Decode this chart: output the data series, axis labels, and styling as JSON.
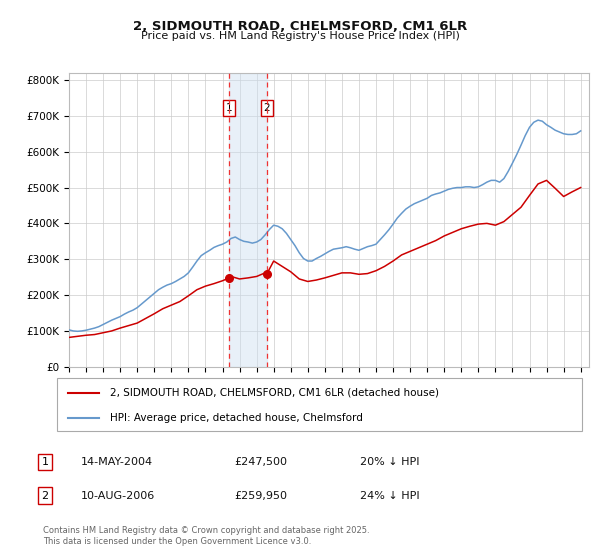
{
  "title": "2, SIDMOUTH ROAD, CHELMSFORD, CM1 6LR",
  "subtitle": "Price paid vs. HM Land Registry's House Price Index (HPI)",
  "legend_label_red": "2, SIDMOUTH ROAD, CHELMSFORD, CM1 6LR (detached house)",
  "legend_label_blue": "HPI: Average price, detached house, Chelmsford",
  "footnote": "Contains HM Land Registry data © Crown copyright and database right 2025.\nThis data is licensed under the Open Government Licence v3.0.",
  "transaction1_date": "14-MAY-2004",
  "transaction1_price": "£247,500",
  "transaction1_hpi": "20% ↓ HPI",
  "transaction1_year": 2004.37,
  "transaction1_value": 247500,
  "transaction2_date": "10-AUG-2006",
  "transaction2_price": "£259,950",
  "transaction2_hpi": "24% ↓ HPI",
  "transaction2_year": 2006.61,
  "transaction2_value": 259950,
  "xlim": [
    1995,
    2025.5
  ],
  "ylim": [
    0,
    820000
  ],
  "yticks": [
    0,
    100000,
    200000,
    300000,
    400000,
    500000,
    600000,
    700000,
    800000
  ],
  "ytick_labels": [
    "£0",
    "£100K",
    "£200K",
    "£300K",
    "£400K",
    "£500K",
    "£600K",
    "£700K",
    "£800K"
  ],
  "background_color": "#ffffff",
  "grid_color": "#cccccc",
  "red_color": "#cc0000",
  "blue_color": "#6699cc",
  "shade_color": "#ccdff0",
  "vline_color": "#ee3333",
  "hpi_data_x": [
    1995.0,
    1995.25,
    1995.5,
    1995.75,
    1996.0,
    1996.25,
    1996.5,
    1996.75,
    1997.0,
    1997.25,
    1997.5,
    1997.75,
    1998.0,
    1998.25,
    1998.5,
    1998.75,
    1999.0,
    1999.25,
    1999.5,
    1999.75,
    2000.0,
    2000.25,
    2000.5,
    2000.75,
    2001.0,
    2001.25,
    2001.5,
    2001.75,
    2002.0,
    2002.25,
    2002.5,
    2002.75,
    2003.0,
    2003.25,
    2003.5,
    2003.75,
    2004.0,
    2004.25,
    2004.5,
    2004.75,
    2005.0,
    2005.25,
    2005.5,
    2005.75,
    2006.0,
    2006.25,
    2006.5,
    2006.75,
    2007.0,
    2007.25,
    2007.5,
    2007.75,
    2008.0,
    2008.25,
    2008.5,
    2008.75,
    2009.0,
    2009.25,
    2009.5,
    2009.75,
    2010.0,
    2010.25,
    2010.5,
    2010.75,
    2011.0,
    2011.25,
    2011.5,
    2011.75,
    2012.0,
    2012.25,
    2012.5,
    2012.75,
    2013.0,
    2013.25,
    2013.5,
    2013.75,
    2014.0,
    2014.25,
    2014.5,
    2014.75,
    2015.0,
    2015.25,
    2015.5,
    2015.75,
    2016.0,
    2016.25,
    2016.5,
    2016.75,
    2017.0,
    2017.25,
    2017.5,
    2017.75,
    2018.0,
    2018.25,
    2018.5,
    2018.75,
    2019.0,
    2019.25,
    2019.5,
    2019.75,
    2020.0,
    2020.25,
    2020.5,
    2020.75,
    2021.0,
    2021.25,
    2021.5,
    2021.75,
    2022.0,
    2022.25,
    2022.5,
    2022.75,
    2023.0,
    2023.25,
    2023.5,
    2023.75,
    2024.0,
    2024.25,
    2024.5,
    2024.75,
    2025.0
  ],
  "hpi_data_y": [
    103000,
    100000,
    99000,
    100000,
    102000,
    105000,
    108000,
    112000,
    118000,
    124000,
    130000,
    135000,
    140000,
    147000,
    153000,
    158000,
    165000,
    175000,
    185000,
    195000,
    205000,
    215000,
    222000,
    228000,
    232000,
    238000,
    245000,
    252000,
    262000,
    278000,
    295000,
    310000,
    318000,
    325000,
    333000,
    338000,
    342000,
    348000,
    358000,
    362000,
    355000,
    350000,
    348000,
    345000,
    348000,
    355000,
    368000,
    383000,
    395000,
    392000,
    385000,
    372000,
    355000,
    338000,
    318000,
    302000,
    295000,
    295000,
    302000,
    308000,
    315000,
    322000,
    328000,
    330000,
    332000,
    335000,
    332000,
    328000,
    325000,
    330000,
    335000,
    338000,
    342000,
    355000,
    368000,
    382000,
    398000,
    415000,
    428000,
    440000,
    448000,
    455000,
    460000,
    465000,
    470000,
    478000,
    482000,
    485000,
    490000,
    495000,
    498000,
    500000,
    500000,
    502000,
    502000,
    500000,
    502000,
    508000,
    515000,
    520000,
    520000,
    515000,
    525000,
    545000,
    568000,
    592000,
    618000,
    645000,
    668000,
    682000,
    688000,
    685000,
    675000,
    668000,
    660000,
    655000,
    650000,
    648000,
    648000,
    650000,
    658000
  ],
  "price_data_x": [
    1995.0,
    1995.5,
    1996.0,
    1996.5,
    1997.0,
    1997.5,
    1998.0,
    1998.5,
    1999.0,
    1999.5,
    2000.0,
    2000.5,
    2001.0,
    2001.5,
    2002.0,
    2002.5,
    2003.0,
    2003.5,
    2004.0,
    2004.37,
    2004.5,
    2005.0,
    2005.5,
    2006.0,
    2006.5,
    2006.61,
    2007.0,
    2007.5,
    2008.0,
    2008.5,
    2009.0,
    2009.5,
    2010.0,
    2010.5,
    2011.0,
    2011.5,
    2012.0,
    2012.5,
    2013.0,
    2013.5,
    2014.0,
    2014.5,
    2015.0,
    2015.5,
    2016.0,
    2016.5,
    2017.0,
    2017.5,
    2018.0,
    2018.5,
    2019.0,
    2019.5,
    2020.0,
    2020.5,
    2021.0,
    2021.5,
    2022.0,
    2022.5,
    2023.0,
    2023.5,
    2024.0,
    2024.5,
    2025.0
  ],
  "price_data_y": [
    82000,
    85000,
    88000,
    90000,
    95000,
    100000,
    108000,
    115000,
    122000,
    135000,
    148000,
    162000,
    172000,
    182000,
    198000,
    215000,
    225000,
    232000,
    240000,
    247500,
    252000,
    245000,
    248000,
    252000,
    262000,
    259950,
    295000,
    280000,
    265000,
    245000,
    238000,
    242000,
    248000,
    255000,
    262000,
    262000,
    258000,
    260000,
    268000,
    280000,
    295000,
    312000,
    322000,
    332000,
    342000,
    352000,
    365000,
    375000,
    385000,
    392000,
    398000,
    400000,
    395000,
    405000,
    425000,
    445000,
    478000,
    510000,
    520000,
    498000,
    475000,
    488000,
    500000
  ]
}
